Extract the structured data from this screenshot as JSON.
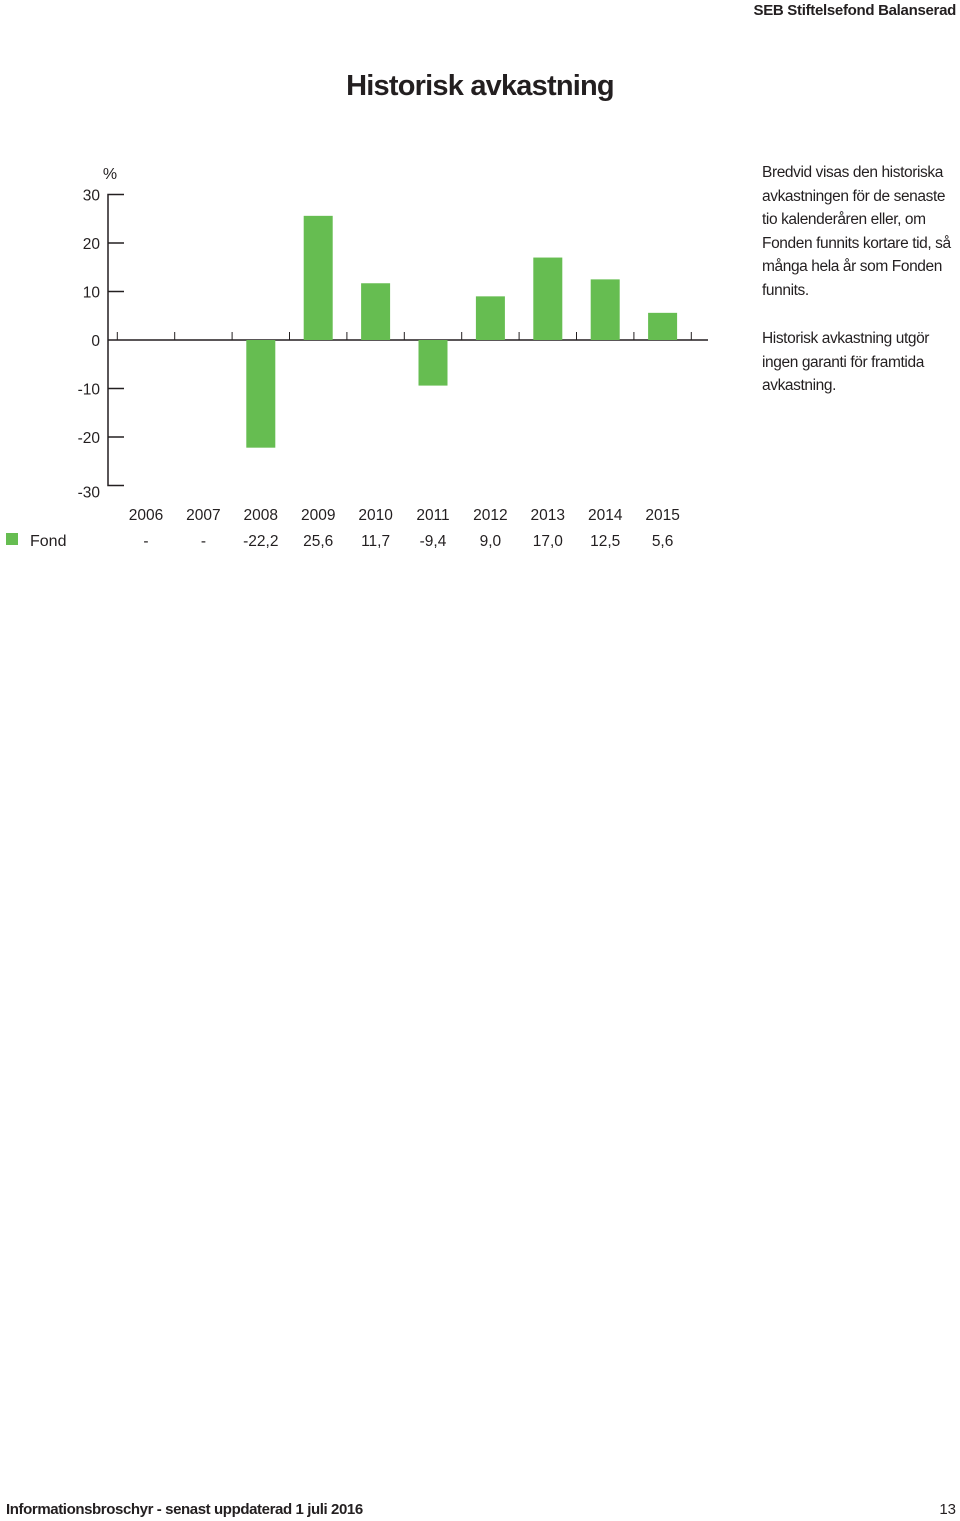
{
  "header": {
    "brand": "SEB Stiftelsefond Balanserad",
    "title": "Historisk avkastning"
  },
  "description": {
    "paragraph1": "Bredvid visas den historiska avkastningen för de senaste tio kalenderåren eller, om Fonden funnits kortare tid, så många hela år som Fonden funnits.",
    "paragraph2": "Historisk avkastning utgör ingen garanti för framtida avkastning."
  },
  "chart_data": {
    "type": "bar",
    "ylabel": "%",
    "ylim": [
      -30,
      30
    ],
    "yticks": [
      "30",
      "20",
      "10",
      "0",
      "-10",
      "-20",
      "-30"
    ],
    "categories": [
      "2006",
      "2007",
      "2008",
      "2009",
      "2010",
      "2011",
      "2012",
      "2013",
      "2014",
      "2015"
    ],
    "series": [
      {
        "name": "Fond",
        "color": "#66bd51",
        "values": [
          null,
          null,
          -22.2,
          25.6,
          11.7,
          -9.4,
          9.0,
          17.0,
          12.5,
          5.6
        ],
        "labels": [
          "-",
          "-",
          "-22,2",
          "25,6",
          "11,7",
          "-9,4",
          "9,0",
          "17,0",
          "12,5",
          "5,6"
        ]
      }
    ],
    "grid": false,
    "legend": "bottom-left"
  },
  "footer": {
    "text": "Informationsbroschyr - senast uppdaterad 1 juli 2016",
    "page_number": "13"
  }
}
